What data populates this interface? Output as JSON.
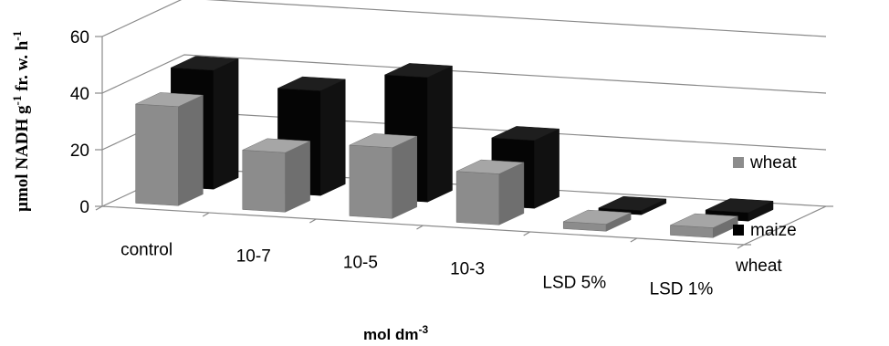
{
  "chart_data": {
    "type": "bar",
    "style": "3d-clustered-column",
    "categories": [
      "control",
      "10-7",
      "10-5",
      "10-3",
      "LSD 5%",
      "LSD 1%"
    ],
    "series": [
      {
        "name": "wheat",
        "color": "#8c8c8c",
        "values": [
          35,
          21,
          25,
          18,
          2.5,
          3.5
        ]
      },
      {
        "name": "maize",
        "color": "#000000",
        "values": [
          42,
          37,
          44,
          24,
          1.5,
          3
        ]
      }
    ],
    "depth_axis_label": "wheat",
    "ylim": [
      0,
      60
    ],
    "yticks": [
      "0",
      "20",
      "40",
      "60"
    ],
    "ylabel": {
      "main": "µmol NADH g",
      "sup1": "-1",
      "mid": " fr. w. h",
      "sup2": "-1"
    },
    "xlabel": {
      "main": "mol dm",
      "sup": "-3"
    },
    "grid": true,
    "legend_position": "right"
  }
}
